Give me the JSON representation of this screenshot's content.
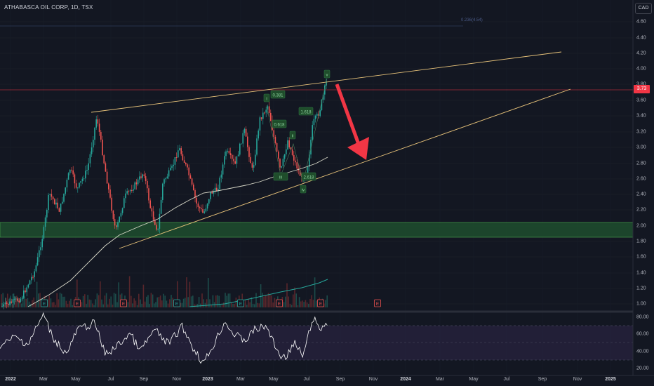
{
  "header": {
    "symbol_line": "ATHABASCA OIL CORP, 1D, TSX"
  },
  "currency_button": "CAD",
  "fib_label": "0.236(4.54)",
  "price_axis": {
    "labels": [
      "4.60",
      "4.40",
      "4.20",
      "4.00",
      "3.80",
      "3.60",
      "3.40",
      "3.20",
      "3.00",
      "2.80",
      "2.60",
      "2.40",
      "2.20",
      "2.00",
      "1.80",
      "1.60",
      "1.40",
      "1.20",
      "1.00"
    ],
    "current_price": "3.73"
  },
  "rsi_axis": {
    "labels": [
      "80.00",
      "60.00",
      "40.00",
      "20.00"
    ]
  },
  "time_axis": {
    "labels": [
      {
        "text": "2022",
        "bold": true
      },
      {
        "text": "Mar",
        "bold": false
      },
      {
        "text": "May",
        "bold": false
      },
      {
        "text": "Jul",
        "bold": false
      },
      {
        "text": "Sep",
        "bold": false
      },
      {
        "text": "Nov",
        "bold": false
      },
      {
        "text": "2023",
        "bold": true
      },
      {
        "text": "Mar",
        "bold": false
      },
      {
        "text": "May",
        "bold": false
      },
      {
        "text": "Jul",
        "bold": false
      },
      {
        "text": "Sep",
        "bold": false
      },
      {
        "text": "Nov",
        "bold": false
      },
      {
        "text": "2024",
        "bold": true
      },
      {
        "text": "Mar",
        "bold": false
      },
      {
        "text": "May",
        "bold": false
      },
      {
        "text": "Jul",
        "bold": false
      },
      {
        "text": "Sep",
        "bold": false
      },
      {
        "text": "Nov",
        "bold": false
      },
      {
        "text": "2025",
        "bold": true
      }
    ]
  },
  "wave_labels": [
    "i",
    "ii",
    "iii",
    "iv",
    "v",
    "0.381",
    "0.618",
    "1.618",
    "2.618"
  ],
  "earnings_marker": "E",
  "colors": {
    "background": "#131722",
    "bull": "#26a69a",
    "bear": "#ef5350",
    "trendline": "#e8c37a",
    "arrow": "#f23645",
    "support_zone": "#1e6b3a",
    "rsi_band": "#2a2440",
    "rsi_line": "#ffffff",
    "ma_line": "#d8d8c8"
  }
}
